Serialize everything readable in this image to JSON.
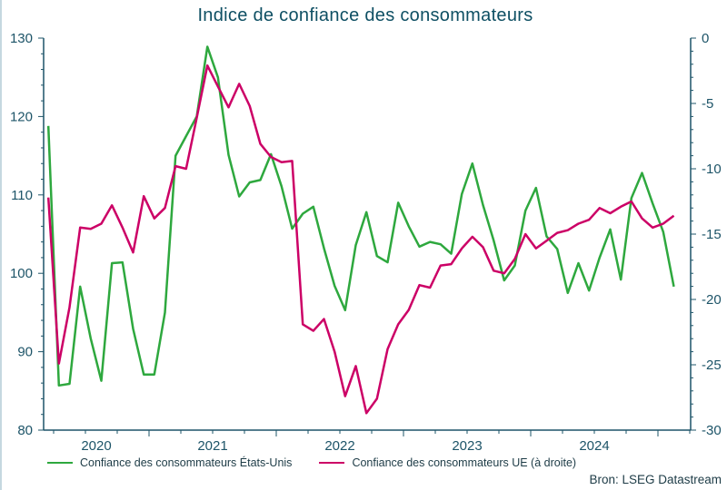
{
  "chart_data": {
    "type": "line",
    "title": "Indice de confiance des consommateurs",
    "source": "Bron: LSEG Datastream",
    "x_start": "2020-03",
    "x_frequency": "monthly",
    "x_tick_labels": [
      "2020",
      "2021",
      "2022",
      "2023",
      "2024"
    ],
    "y_left": {
      "range": [
        80,
        130
      ],
      "ticks": [
        80,
        90,
        100,
        110,
        120,
        130
      ]
    },
    "y_right": {
      "range": [
        -30,
        0
      ],
      "ticks": [
        -30,
        -25,
        -20,
        -15,
        -10,
        -5,
        0
      ]
    },
    "grid": false,
    "legend_placement": "bottom",
    "series": [
      {
        "name": "Confiance des consommateurs États-Unis",
        "axis": "left",
        "color": "#2ea83e",
        "values": [
          118.8,
          85.7,
          85.9,
          98.3,
          91.7,
          86.3,
          101.3,
          101.4,
          92.9,
          87.1,
          87.1,
          95.0,
          115.0,
          117.5,
          120.0,
          128.9,
          125.0,
          115.1,
          109.8,
          111.6,
          111.9,
          115.2,
          111.1,
          105.7,
          107.6,
          108.5,
          103.2,
          98.4,
          95.3,
          103.6,
          107.8,
          102.2,
          101.4,
          109.0,
          106.0,
          103.4,
          104.0,
          103.7,
          102.5,
          110.1,
          114.0,
          108.7,
          104.2,
          99.1,
          101.0,
          108.0,
          110.9,
          104.7,
          103.1,
          97.5,
          101.3,
          97.8,
          102.0,
          105.6,
          99.2,
          109.6,
          112.8,
          108.9,
          105.3,
          98.3
        ]
      },
      {
        "name": "Confiance des consommateurs UE (à droite)",
        "axis": "right",
        "color": "#cc0066",
        "values": [
          -12.2,
          -24.9,
          -20.6,
          -14.5,
          -14.6,
          -14.2,
          -12.8,
          -14.5,
          -16.4,
          -12.1,
          -13.8,
          -13.0,
          -9.8,
          -10.0,
          -6.1,
          -2.1,
          -3.7,
          -5.3,
          -3.5,
          -5.2,
          -8.1,
          -9.1,
          -9.5,
          -9.4,
          -21.9,
          -22.4,
          -21.5,
          -24.0,
          -27.4,
          -25.1,
          -28.7,
          -27.6,
          -23.8,
          -21.9,
          -20.8,
          -18.9,
          -19.1,
          -17.4,
          -17.3,
          -16.1,
          -15.2,
          -16.0,
          -17.8,
          -18.0,
          -16.9,
          -15.0,
          -16.1,
          -15.5,
          -14.9,
          -14.7,
          -14.2,
          -13.9,
          -13.0,
          -13.4,
          -12.9,
          -12.5,
          -13.8,
          -14.5,
          -14.2,
          -13.6
        ]
      }
    ],
    "axis_color": "#1d5468"
  }
}
